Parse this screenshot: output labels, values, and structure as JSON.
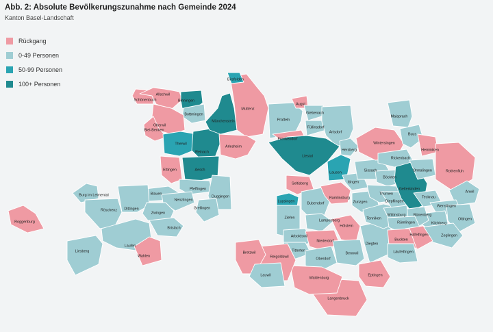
{
  "title": "Abb. 2: Absolute Bevölkerungszunahme nach Gemeinde 2024",
  "subtitle": "Kanton Basel-Landschaft",
  "legend": [
    {
      "label": "Rückgang",
      "color": "#ef9aa3"
    },
    {
      "label": "0-49 Personen",
      "color": "#9fcdd3"
    },
    {
      "label": "50-99 Personen",
      "color": "#2aa4b2"
    },
    {
      "label": "100+ Personen",
      "color": "#1f8a8f"
    }
  ],
  "municipalities": [
    {
      "name": "Schönenbuch",
      "cat": 0
    },
    {
      "name": "Allschwil",
      "cat": 0
    },
    {
      "name": "Binningen",
      "cat": 3
    },
    {
      "name": "Bottmingen",
      "cat": 1
    },
    {
      "name": "Oberwil",
      "cat": 0
    },
    {
      "name": "Biel-Benken",
      "cat": 0
    },
    {
      "name": "Therwil",
      "cat": 2
    },
    {
      "name": "Reinach",
      "cat": 3
    },
    {
      "name": "Ettingen",
      "cat": 0
    },
    {
      "name": "Aesch",
      "cat": 3
    },
    {
      "name": "Münchenstein",
      "cat": 3
    },
    {
      "name": "Muttenz",
      "cat": 0
    },
    {
      "name": "Birsfelden",
      "cat": 2
    },
    {
      "name": "Arlesheim",
      "cat": 0
    },
    {
      "name": "Pratteln",
      "cat": 1
    },
    {
      "name": "Augst",
      "cat": 0
    },
    {
      "name": "Giebenach",
      "cat": 1
    },
    {
      "name": "Füllinsdorf",
      "cat": 1
    },
    {
      "name": "Arisdorf",
      "cat": 1
    },
    {
      "name": "Frenkendorf",
      "cat": 0
    },
    {
      "name": "Liestal",
      "cat": 3
    },
    {
      "name": "Hersberg",
      "cat": 1
    },
    {
      "name": "Lausen",
      "cat": 2
    },
    {
      "name": "Seltisberg",
      "cat": 0
    },
    {
      "name": "Pfeffingen",
      "cat": 1
    },
    {
      "name": "Duggingen",
      "cat": 1
    },
    {
      "name": "Grellingen",
      "cat": 1
    },
    {
      "name": "Blauen",
      "cat": 1
    },
    {
      "name": "Nenzlingen",
      "cat": 1
    },
    {
      "name": "Burg im Leimental",
      "cat": 1
    },
    {
      "name": "Dittingen",
      "cat": 1
    },
    {
      "name": "Röschenz",
      "cat": 1
    },
    {
      "name": "Zwingen",
      "cat": 1
    },
    {
      "name": "Brislach",
      "cat": 1
    },
    {
      "name": "Laufen",
      "cat": 1
    },
    {
      "name": "Liesberg",
      "cat": 1
    },
    {
      "name": "Wahlen",
      "cat": 0
    },
    {
      "name": "Roggenburg",
      "cat": 0
    },
    {
      "name": "Lupsingen",
      "cat": 2
    },
    {
      "name": "Ziefen",
      "cat": 1
    },
    {
      "name": "Bubendorf",
      "cat": 1
    },
    {
      "name": "Ramlinsburg",
      "cat": 0
    },
    {
      "name": "Itingen",
      "cat": 1
    },
    {
      "name": "Zunzgen",
      "cat": 1
    },
    {
      "name": "Lampenberg",
      "cat": 1
    },
    {
      "name": "Hölstein",
      "cat": 0
    },
    {
      "name": "Arboldswil",
      "cat": 1
    },
    {
      "name": "Niederdorf",
      "cat": 0
    },
    {
      "name": "Titterten",
      "cat": 1
    },
    {
      "name": "Oberdorf",
      "cat": 1
    },
    {
      "name": "Bennwil",
      "cat": 1
    },
    {
      "name": "Diegten",
      "cat": 1
    },
    {
      "name": "Tenniken",
      "cat": 1
    },
    {
      "name": "Sissach",
      "cat": 1
    },
    {
      "name": "Böckten",
      "cat": 1
    },
    {
      "name": "Thürnen",
      "cat": 1
    },
    {
      "name": "Diepflingen",
      "cat": 1
    },
    {
      "name": "Gelterkinden",
      "cat": 3
    },
    {
      "name": "Wintersingen",
      "cat": 0
    },
    {
      "name": "Maisprach",
      "cat": 1
    },
    {
      "name": "Buus",
      "cat": 1
    },
    {
      "name": "Hemmiken",
      "cat": 0
    },
    {
      "name": "Rickenbach",
      "cat": 1
    },
    {
      "name": "Ormalingen",
      "cat": 1
    },
    {
      "name": "Rothenfluh",
      "cat": 0
    },
    {
      "name": "Tecknau",
      "cat": 1
    },
    {
      "name": "Anwil",
      "cat": 1
    },
    {
      "name": "Wenslingen",
      "cat": 1
    },
    {
      "name": "Oltingen",
      "cat": 1
    },
    {
      "name": "Kilchberg",
      "cat": 1
    },
    {
      "name": "Rünenberg",
      "cat": 1
    },
    {
      "name": "Wittinsburg",
      "cat": 1
    },
    {
      "name": "Rümlingen",
      "cat": 1
    },
    {
      "name": "Zeglingen",
      "cat": 1
    },
    {
      "name": "Häfelfingen",
      "cat": 0
    },
    {
      "name": "Buckten",
      "cat": 0
    },
    {
      "name": "Läufelfingen",
      "cat": 1
    },
    {
      "name": "Eptingen",
      "cat": 0
    },
    {
      "name": "Langenbruck",
      "cat": 0
    },
    {
      "name": "Waldenburg",
      "cat": 0
    },
    {
      "name": "Reigoldswil",
      "cat": 0
    },
    {
      "name": "Bretzwil",
      "cat": 0
    },
    {
      "name": "Lauwil",
      "cat": 1
    }
  ]
}
